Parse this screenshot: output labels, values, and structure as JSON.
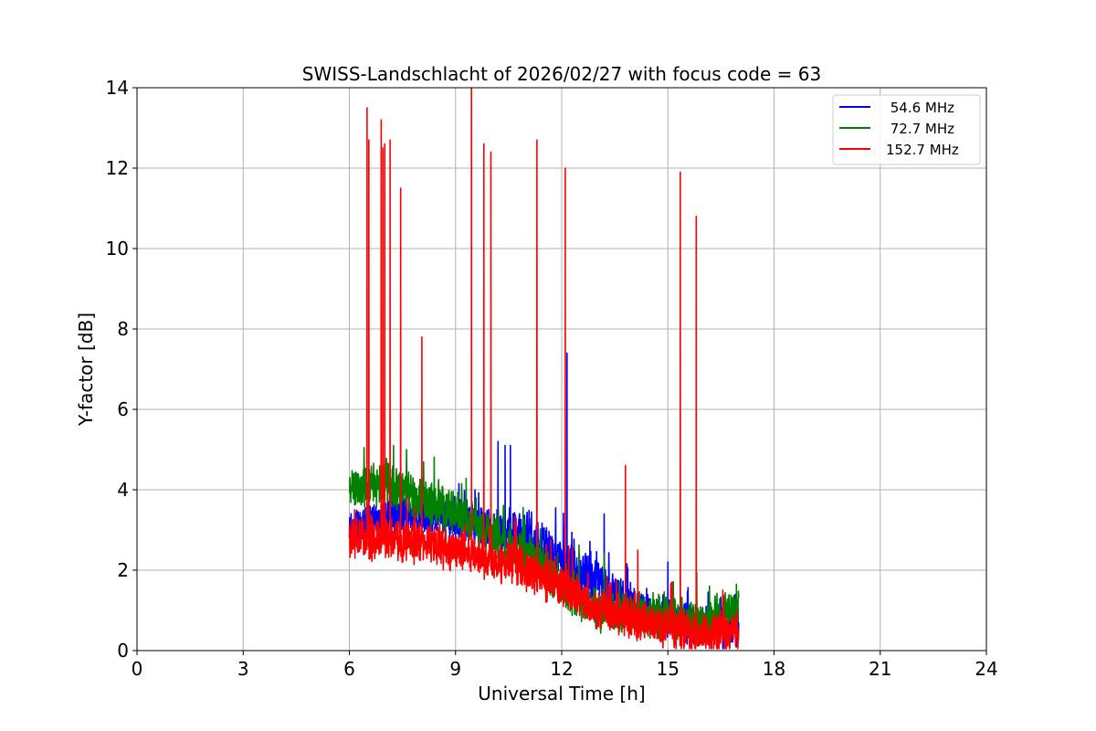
{
  "chart_data": {
    "type": "line",
    "title": "SWISS-Landschlacht of 2026/02/27 with focus code = 63",
    "xlabel": "Universal Time [h]",
    "ylabel": "Y-factor [dB]",
    "xlim": [
      0,
      24
    ],
    "ylim": [
      0,
      14
    ],
    "xticks": [
      0,
      3,
      6,
      9,
      12,
      15,
      18,
      21,
      24
    ],
    "yticks": [
      0,
      2,
      4,
      6,
      8,
      10,
      12,
      14
    ],
    "grid": true,
    "legend_position": "top-right",
    "series": [
      {
        "name": " 54.6 MHz",
        "color": "#0000ff",
        "base": [
          [
            6.0,
            3.0
          ],
          [
            7.0,
            3.3
          ],
          [
            8.0,
            3.4
          ],
          [
            9.0,
            3.3
          ],
          [
            10.0,
            3.0
          ],
          [
            11.0,
            2.9
          ],
          [
            11.5,
            2.6
          ],
          [
            12.0,
            2.2
          ],
          [
            13.0,
            1.7
          ],
          [
            14.0,
            1.1
          ],
          [
            15.0,
            0.8
          ],
          [
            16.0,
            0.6
          ],
          [
            17.0,
            0.5
          ]
        ],
        "spikes": [
          [
            10.2,
            5.2
          ],
          [
            10.4,
            5.1
          ],
          [
            10.55,
            5.1
          ],
          [
            12.15,
            7.4
          ],
          [
            13.2,
            3.4
          ],
          [
            15.0,
            2.2
          ]
        ]
      },
      {
        "name": " 72.7 MHz",
        "color": "#008000",
        "base": [
          [
            6.0,
            4.0
          ],
          [
            7.0,
            4.2
          ],
          [
            8.0,
            3.8
          ],
          [
            9.0,
            3.4
          ],
          [
            10.0,
            2.9
          ],
          [
            11.0,
            2.4
          ],
          [
            12.0,
            1.6
          ],
          [
            13.0,
            1.0
          ],
          [
            14.0,
            0.9
          ],
          [
            15.0,
            0.9
          ],
          [
            16.0,
            0.6
          ],
          [
            17.0,
            1.1
          ]
        ],
        "spikes": [
          [
            7.25,
            5.1
          ],
          [
            8.4,
            4.3
          ],
          [
            9.3,
            4.2
          ]
        ]
      },
      {
        "name": "152.7 MHz",
        "color": "#ff0000",
        "base": [
          [
            6.0,
            2.8
          ],
          [
            7.0,
            2.8
          ],
          [
            8.0,
            2.7
          ],
          [
            9.0,
            2.5
          ],
          [
            10.0,
            2.3
          ],
          [
            11.0,
            2.0
          ],
          [
            12.0,
            1.6
          ],
          [
            13.0,
            1.1
          ],
          [
            14.0,
            0.8
          ],
          [
            15.0,
            0.6
          ],
          [
            16.0,
            0.4
          ],
          [
            17.0,
            0.5
          ]
        ],
        "spikes": [
          [
            6.5,
            13.5
          ],
          [
            6.55,
            12.7
          ],
          [
            6.9,
            13.2
          ],
          [
            6.95,
            12.5
          ],
          [
            7.0,
            12.6
          ],
          [
            7.15,
            12.7
          ],
          [
            7.45,
            11.5
          ],
          [
            8.05,
            7.8
          ],
          [
            9.45,
            14.0
          ],
          [
            9.8,
            12.6
          ],
          [
            10.0,
            12.4
          ],
          [
            11.3,
            12.7
          ],
          [
            12.1,
            12.0
          ],
          [
            13.8,
            4.6
          ],
          [
            14.15,
            2.5
          ],
          [
            15.35,
            11.9
          ],
          [
            15.8,
            10.8
          ]
        ]
      }
    ]
  }
}
